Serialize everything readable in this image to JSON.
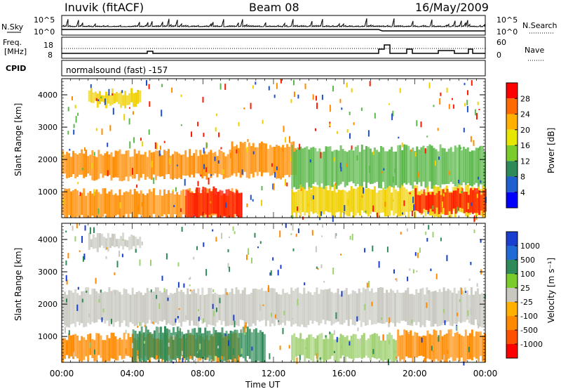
{
  "header": {
    "station": "Inuvik (fitACF)",
    "beam": "Beam 08",
    "date": "16/May/2009"
  },
  "top_panel": {
    "nsky_label": "N.Sky",
    "nsearch_label": "N.Search",
    "left_ticks": [
      "10^5",
      "10^0"
    ],
    "right_ticks": [
      "10^5",
      "10^0"
    ]
  },
  "freq_panel": {
    "freq_label_line1": "Freq.",
    "freq_label_line2": "[MHz]",
    "left_ticks": [
      "18",
      "8"
    ],
    "right_ticks": [
      "60",
      "0"
    ],
    "nave_label": "Nave"
  },
  "cpid": {
    "label": "CPID",
    "value": "normalsound (fast) -157"
  },
  "chart_data": [
    {
      "type": "heatmap",
      "name": "power",
      "xlabel": "",
      "ylabel": "Slant Range [km]",
      "x_ticks": [
        "00:00",
        "04:00",
        "08:00",
        "12:00",
        "16:00",
        "20:00",
        "00:00"
      ],
      "y_ticks": [
        1000,
        2000,
        3000,
        4000
      ],
      "ylim": [
        200,
        4500
      ],
      "colorbar": {
        "label": "Power [dB]",
        "ticks": [
          "28",
          "24",
          "20",
          "16",
          "12",
          "8",
          "4"
        ],
        "colors": [
          "#ff0000",
          "#ff6a00",
          "#ffb000",
          "#e6e600",
          "#7acc2a",
          "#2e8b57",
          "#1f5fd0",
          "#0000ff"
        ]
      },
      "bands": [
        {
          "t_start": 0.0,
          "t_end": 9.6,
          "r_low": 1450,
          "r_high": 2200,
          "level": "orange"
        },
        {
          "t_start": 9.6,
          "t_end": 13.2,
          "r_low": 1500,
          "r_high": 2450,
          "level": "orange"
        },
        {
          "t_start": 13.0,
          "t_end": 24.0,
          "r_low": 1200,
          "r_high": 2350,
          "level": "green"
        },
        {
          "t_start": 0.0,
          "t_end": 10.0,
          "r_low": 200,
          "r_high": 1000,
          "level": "orange"
        },
        {
          "t_start": 7.0,
          "t_end": 10.2,
          "r_low": 200,
          "r_high": 1050,
          "level": "red"
        },
        {
          "t_start": 13.0,
          "t_end": 24.0,
          "r_low": 300,
          "r_high": 1100,
          "level": "yellow"
        },
        {
          "t_start": 20.0,
          "t_end": 24.0,
          "r_low": 400,
          "r_high": 1000,
          "level": "red"
        },
        {
          "t_start": 1.5,
          "t_end": 4.5,
          "r_low": 3700,
          "r_high": 4100,
          "level": "yellow"
        }
      ]
    },
    {
      "type": "heatmap",
      "name": "velocity",
      "xlabel": "Time UT",
      "ylabel": "Slant Range [km]",
      "x_ticks": [
        "00:00",
        "04:00",
        "08:00",
        "12:00",
        "16:00",
        "20:00",
        "00:00"
      ],
      "y_ticks": [
        1000,
        2000,
        3000,
        4000
      ],
      "ylim": [
        200,
        4500
      ],
      "colorbar": {
        "label": "Velocity [m s⁻¹]",
        "ticks": [
          "1000",
          "500",
          "100",
          "25",
          "-25",
          "-100",
          "-500",
          "-1000"
        ],
        "colors": [
          "#1a3fd0",
          "#1f6ad6",
          "#2e8b57",
          "#7acc2a",
          "#c8c8c0",
          "#ffb000",
          "#ff8a00",
          "#ff5000",
          "#ff0000"
        ]
      },
      "bands": [
        {
          "t_start": 0.0,
          "t_end": 24.0,
          "r_low": 1400,
          "r_high": 2400,
          "level": "grey"
        },
        {
          "t_start": 0.0,
          "t_end": 10.0,
          "r_low": 300,
          "r_high": 1000,
          "level": "orange"
        },
        {
          "t_start": 4.0,
          "t_end": 11.5,
          "r_low": 300,
          "r_high": 1200,
          "level": "green"
        },
        {
          "t_start": 13.0,
          "t_end": 19.0,
          "r_low": 300,
          "r_high": 1000,
          "level": "mixed"
        },
        {
          "t_start": 19.0,
          "t_end": 24.0,
          "r_low": 300,
          "r_high": 1100,
          "level": "orange"
        },
        {
          "t_start": 1.5,
          "t_end": 4.5,
          "r_low": 3700,
          "r_high": 4100,
          "level": "grey"
        }
      ]
    }
  ],
  "x_axis_title": "Time UT"
}
